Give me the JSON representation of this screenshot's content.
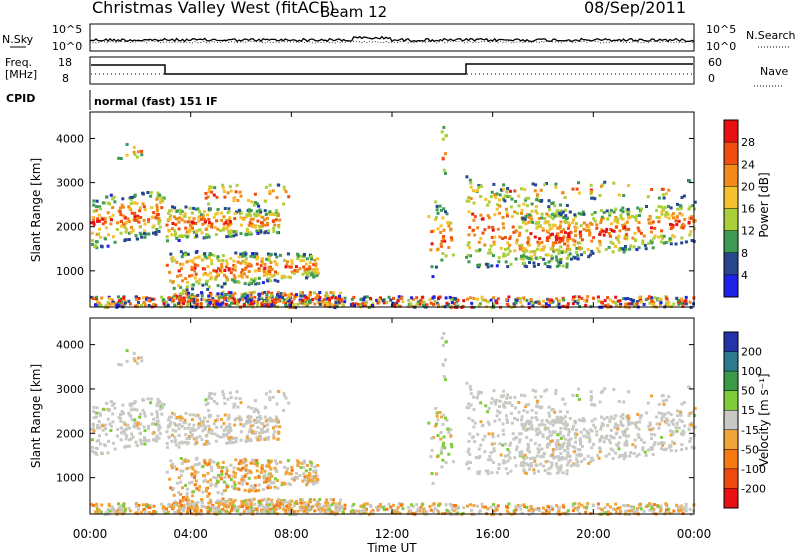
{
  "header": {
    "station": "Christmas Valley West (fitACF)",
    "beam": "Beam 12",
    "date": "08/Sep/2011"
  },
  "nsky_panel": {
    "left_label": "N.Sky",
    "right_label": "N.Search",
    "left_ticks": [
      "10^5",
      "10^0"
    ],
    "right_ticks": [
      "10^5",
      "10^0"
    ]
  },
  "freq_panel": {
    "left_label_1": "Freq.",
    "left_label_2": "[MHz]",
    "right_label": "Nave",
    "left_ticks": [
      "18",
      "8"
    ],
    "right_ticks": [
      "60",
      "0"
    ]
  },
  "cpid_panel": {
    "label": "CPID",
    "text": "normal (fast) 151 IF"
  },
  "chart_data": [
    {
      "type": "heatmap",
      "name": "power",
      "ylabel": "Slant Range [km]",
      "yticks": [
        "4000",
        "3000",
        "2000",
        "1000"
      ],
      "colorbar_label": "Power [dB]",
      "colorbar_ticks": [
        "28",
        "24",
        "20",
        "16",
        "12",
        "8",
        "4"
      ],
      "colorbar_colors": [
        "#e81010",
        "#f04d0e",
        "#f18a1a",
        "#f5c12e",
        "#a9cf3a",
        "#3c9a54",
        "#27468f",
        "#2020e6"
      ],
      "xticks": [
        "00:00",
        "04:00",
        "08:00",
        "12:00",
        "16:00",
        "20:00",
        "00:00"
      ],
      "xlabel": "Time UT"
    },
    {
      "type": "heatmap",
      "name": "velocity",
      "ylabel": "Slant Range [km]",
      "yticks": [
        "4000",
        "3000",
        "2000",
        "1000"
      ],
      "colorbar_label": "Velocity [m s⁻¹]",
      "colorbar_ticks": [
        "200",
        "100",
        "50",
        "15",
        "-15",
        "-50",
        "-100",
        "-200"
      ],
      "colorbar_colors": [
        "#2434a8",
        "#2a7c8c",
        "#3a9a48",
        "#7fcc3a",
        "#c8c8c4",
        "#f0a43a",
        "#f57a14",
        "#f04a10",
        "#e81010"
      ],
      "xticks": [
        "00:00",
        "04:00",
        "08:00",
        "12:00",
        "16:00",
        "20:00",
        "00:00"
      ],
      "xlabel": "Time UT"
    }
  ]
}
